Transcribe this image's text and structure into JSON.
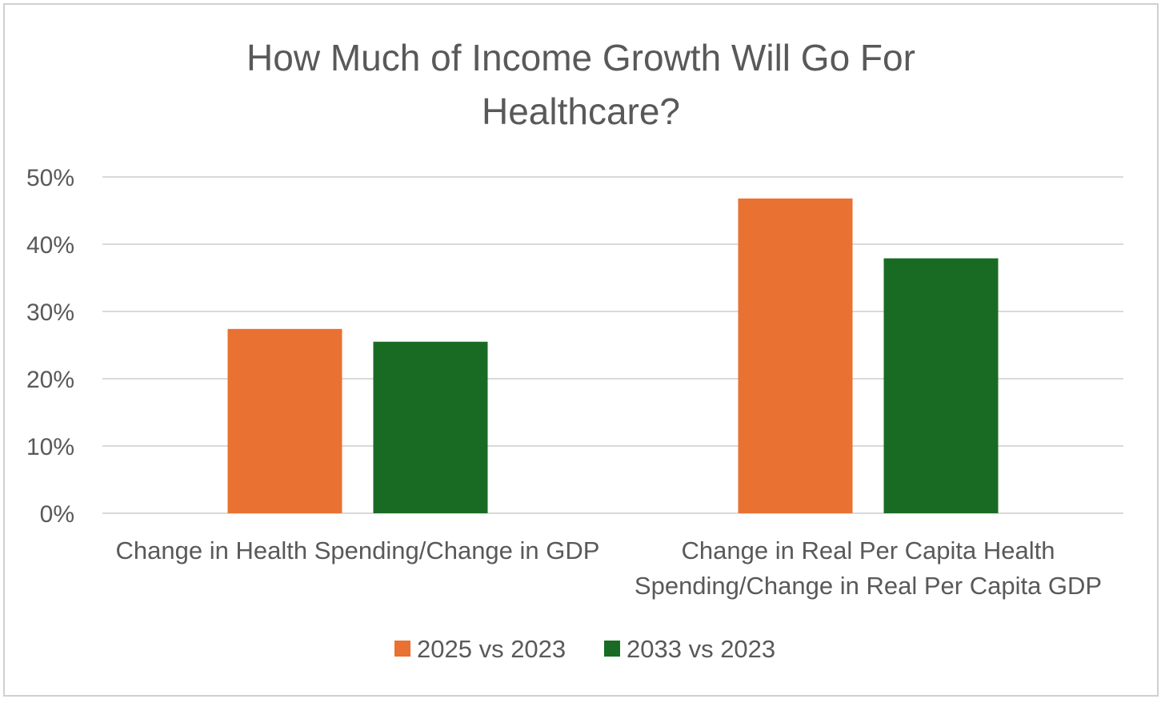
{
  "chart_data": {
    "type": "bar",
    "title": "How Much of Income Growth Will Go For Healthcare?",
    "title_lines": [
      "How Much of Income Growth Will Go For",
      "Healthcare?"
    ],
    "categories": [
      "Change in Health Spending/Change in GDP",
      "Change in Real Per Capita Health Spending/Change in Real Per Capita GDP"
    ],
    "category_label_lines": [
      [
        "Change in Health Spending/Change in GDP"
      ],
      [
        "Change in Real Per Capita Health",
        "Spending/Change in Real Per Capita GDP"
      ]
    ],
    "series": [
      {
        "name": "2025 vs 2023",
        "values": [
          27.4,
          46.8
        ],
        "color": "#E97132"
      },
      {
        "name": "2033 vs 2023",
        "values": [
          25.5,
          37.9
        ],
        "color": "#196B24"
      }
    ],
    "y_ticks": [
      "0%",
      "10%",
      "20%",
      "30%",
      "40%",
      "50%"
    ],
    "y_tick_values": [
      0,
      10,
      20,
      30,
      40,
      50
    ],
    "ylim": [
      0,
      50
    ],
    "xlabel": "",
    "ylabel": "",
    "grid": true,
    "legend_position": "bottom"
  }
}
